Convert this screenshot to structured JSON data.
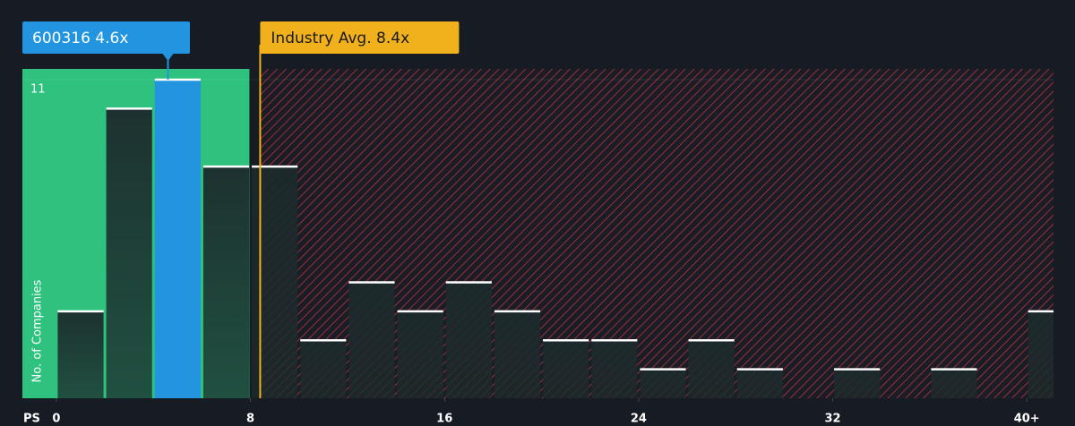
{
  "chart_data": {
    "type": "histogram",
    "x_label": "PS",
    "y_label": "No. of Companies",
    "bins": [
      0,
      2,
      4,
      6,
      8,
      10,
      12,
      14,
      16,
      18,
      20,
      22,
      24,
      26,
      28,
      30,
      32,
      34,
      36,
      38,
      40,
      42
    ],
    "values": [
      3,
      10,
      11,
      8,
      8,
      2,
      4,
      3,
      4,
      3,
      2,
      2,
      1,
      2,
      1,
      0,
      1,
      0,
      1,
      0,
      3
    ],
    "color": "#1e3a33",
    "xlim": [
      -1.4,
      41.1
    ],
    "ylim": [
      0,
      11
    ],
    "xticks": [
      0,
      8,
      16,
      24,
      32,
      {
        "value": 40,
        "label": "40+"
      }
    ],
    "yticks": [
      11
    ],
    "company": {
      "label": "600316 4.6x",
      "value": 4.6,
      "color": "#2394e0"
    },
    "industry": {
      "label": "Industry Avg. 8.4x",
      "value": 8.4,
      "color": "#f0b11c"
    }
  }
}
